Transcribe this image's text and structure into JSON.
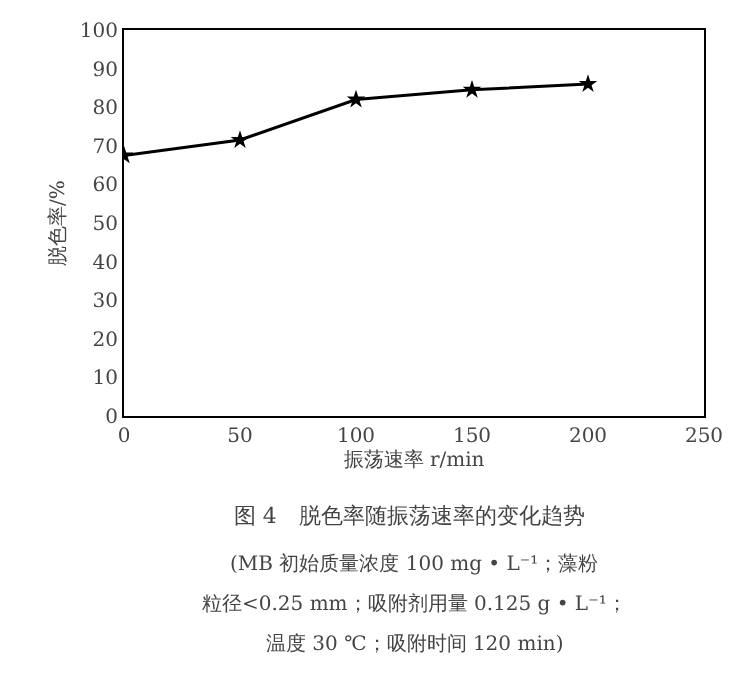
{
  "chart_data": {
    "type": "line",
    "title": "图 4　脱色率随振荡速率的变化趋势",
    "annotations": [
      "(MB 初始质量浓度 100 mg • L⁻¹；藻粉",
      "粒径<0.25 mm；吸附剂用量 0.125 g • L⁻¹；",
      "温度 30 ℃；吸附时间 120 min)"
    ],
    "xlabel": "振荡速率 r/min",
    "ylabel": "脱色率/%",
    "x": [
      0,
      50,
      100,
      150,
      200
    ],
    "series": [
      {
        "color": "#000000",
        "values": [
          67.5,
          71.5,
          82,
          84.5,
          86
        ]
      }
    ],
    "xlim": [
      0,
      250
    ],
    "xticks": [
      0,
      50,
      100,
      150,
      200,
      250
    ],
    "ylim": [
      0,
      100
    ],
    "yticks": [
      0,
      10,
      20,
      30,
      40,
      50,
      60,
      70,
      80,
      90,
      100
    ],
    "grid": false,
    "legend": false,
    "marker": "star",
    "line_style": "solid"
  }
}
